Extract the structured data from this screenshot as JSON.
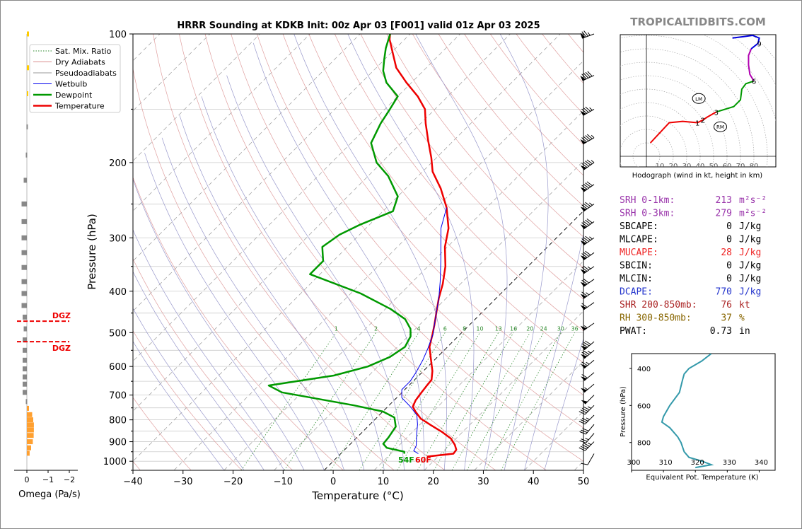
{
  "page": {
    "title": "HRRR Sounding at KDKB Init: 00z Apr 03 [F001] valid 01z Apr 03 2025",
    "watermark": "TROPICALTIDBITS.COM"
  },
  "chart_data": [
    {
      "id": "skewt",
      "type": "line",
      "title": "HRRR Sounding at KDKB Init: 00z Apr 03 [F001] valid 01z Apr 03 2025",
      "xlabel": "Temperature (°C)",
      "ylabel": "Pressure (hPa)",
      "xlim": [
        -40,
        50
      ],
      "ylim": [
        1050,
        100
      ],
      "y_scale": "log",
      "x_ticks": [
        "−40",
        "−30",
        "−20",
        "−10",
        "0",
        "10",
        "20",
        "30",
        "40",
        "50"
      ],
      "y_ticks": [
        "100",
        "200",
        "300",
        "400",
        "500",
        "600",
        "700",
        "800",
        "900",
        "1000"
      ],
      "legend": {
        "placement": "top-left",
        "entries": [
          {
            "label": "Sat. Mix. Ratio",
            "color": "#2e8b2e",
            "style": "dotted"
          },
          {
            "label": "Dry Adiabats",
            "color": "#d98c8c",
            "style": "solid"
          },
          {
            "label": "Pseudoadiabats",
            "color": "#999999",
            "style": "solid"
          },
          {
            "label": "Wetbulb",
            "color": "#0000ee",
            "style": "solid"
          },
          {
            "label": "Dewpoint",
            "color": "#009900",
            "style": "solid"
          },
          {
            "label": "Temperature",
            "color": "#ee0000",
            "style": "solid"
          }
        ]
      },
      "mixing_ratio_labels": [
        "1",
        "2",
        "4",
        "6",
        "8",
        "10",
        "13",
        "16",
        "20",
        "24",
        "30",
        "36"
      ],
      "surface_labels": {
        "dewpoint": "54F",
        "temperature": "60F"
      },
      "series": [
        {
          "name": "Temperature",
          "color": "#ee0000",
          "points": [
            [
              17.8,
              975
            ],
            [
              22.5,
              960
            ],
            [
              22.3,
              940
            ],
            [
              21,
              915
            ],
            [
              19,
              885
            ],
            [
              16,
              855
            ],
            [
              12.5,
              825
            ],
            [
              9,
              795
            ],
            [
              6.5,
              765
            ],
            [
              5,
              745
            ],
            [
              4.3,
              720
            ],
            [
              3.9,
              690
            ],
            [
              3.6,
              665
            ],
            [
              3.4,
              645
            ],
            [
              1.8,
              615
            ],
            [
              -1,
              575
            ],
            [
              -3.6,
              540
            ],
            [
              -5.5,
              505
            ],
            [
              -7,
              480
            ],
            [
              -9,
              450
            ],
            [
              -11.5,
              415
            ],
            [
              -13.5,
              385
            ],
            [
              -16.5,
              350
            ],
            [
              -20.5,
              315
            ],
            [
              -23.5,
              285
            ],
            [
              -28,
              255
            ],
            [
              -33,
              230
            ],
            [
              -38,
              210
            ],
            [
              -41,
              195
            ],
            [
              -45,
              178
            ],
            [
              -49,
              162
            ],
            [
              -52,
              150
            ],
            [
              -56,
              140
            ],
            [
              -61,
              130
            ],
            [
              -66,
              120
            ],
            [
              -70,
              110
            ],
            [
              -73,
              103
            ],
            [
              -74,
              100
            ]
          ]
        },
        {
          "name": "Dewpoint",
          "color": "#009900",
          "points": [
            [
              12.7,
              960
            ],
            [
              12.3,
              950
            ],
            [
              8,
              930
            ],
            [
              6.5,
              910
            ],
            [
              6.3,
              880
            ],
            [
              5.6,
              830
            ],
            [
              3.5,
              790
            ],
            [
              0,
              765
            ],
            [
              -7,
              740
            ],
            [
              -24,
              690
            ],
            [
              -28,
              665
            ],
            [
              -17,
              630
            ],
            [
              -12,
              600
            ],
            [
              -9.5,
              570
            ],
            [
              -8.5,
              540
            ],
            [
              -9.5,
              510
            ],
            [
              -11,
              490
            ],
            [
              -14,
              465
            ],
            [
              -19,
              440
            ],
            [
              -28,
              405
            ],
            [
              -42,
              365
            ],
            [
              -42,
              340
            ],
            [
              -45,
              315
            ],
            [
              -44,
              295
            ],
            [
              -42,
              280
            ],
            [
              -38,
              260
            ],
            [
              -40,
              240
            ],
            [
              -46,
              215
            ],
            [
              -51,
              200
            ],
            [
              -56,
              180
            ],
            [
              -58,
              162
            ],
            [
              -59,
              150
            ],
            [
              -60,
              140
            ],
            [
              -65,
              130
            ],
            [
              -68,
              122
            ],
            [
              -70,
              115
            ],
            [
              -72,
              108
            ],
            [
              -74,
              100
            ]
          ]
        },
        {
          "name": "Wetbulb",
          "color": "#0000ee",
          "points": [
            [
              15.5,
              960
            ],
            [
              14,
              945
            ],
            [
              13.5,
              920
            ],
            [
              11.5,
              870
            ],
            [
              9.5,
              820
            ],
            [
              7.5,
              780
            ],
            [
              4.5,
              745
            ],
            [
              1,
              710
            ],
            [
              -0.6,
              680
            ],
            [
              -0.6,
              650
            ],
            [
              -1.2,
              620
            ],
            [
              -2.3,
              580
            ],
            [
              -3.6,
              545
            ],
            [
              -5.4,
              505
            ],
            [
              -7,
              480
            ],
            [
              -9,
              450
            ],
            [
              -11.5,
              415
            ],
            [
              -14.5,
              380
            ],
            [
              -18.5,
              340
            ],
            [
              -22.5,
              305
            ],
            [
              -25,
              285
            ],
            [
              -28,
              255
            ]
          ]
        }
      ]
    },
    {
      "id": "omega",
      "type": "bar",
      "xlabel": "Omega (Pa/s)",
      "xlim": [
        0.3,
        -2
      ],
      "x_ticks": [
        "0",
        "−1",
        "−2"
      ],
      "dgz_label": "DGZ",
      "dgz_bounds_hpa": [
        470,
        525
      ],
      "bars": [
        {
          "p": 100,
          "v": -0.1
        },
        {
          "p": 120,
          "v": -0.1
        },
        {
          "p": 138,
          "v": -0.05
        },
        {
          "p": 165,
          "v": 0.02
        },
        {
          "p": 192,
          "v": 0.05
        },
        {
          "p": 220,
          "v": 0.15
        },
        {
          "p": 250,
          "v": 0.25
        },
        {
          "p": 275,
          "v": 0.25
        },
        {
          "p": 300,
          "v": 0.25
        },
        {
          "p": 325,
          "v": 0.25
        },
        {
          "p": 352,
          "v": 0.25
        },
        {
          "p": 380,
          "v": 0.25
        },
        {
          "p": 405,
          "v": 0.25
        },
        {
          "p": 432,
          "v": 0.25
        },
        {
          "p": 460,
          "v": 0.2
        },
        {
          "p": 490,
          "v": 0.15
        },
        {
          "p": 520,
          "v": 0.2
        },
        {
          "p": 550,
          "v": 0.2
        },
        {
          "p": 580,
          "v": 0.2
        },
        {
          "p": 608,
          "v": 0.2
        },
        {
          "p": 635,
          "v": 0.2
        },
        {
          "p": 660,
          "v": 0.2
        },
        {
          "p": 690,
          "v": 0.2
        },
        {
          "p": 725,
          "v": 0.05
        },
        {
          "p": 752,
          "v": -0.1
        },
        {
          "p": 778,
          "v": -0.25
        },
        {
          "p": 800,
          "v": -0.3
        },
        {
          "p": 822,
          "v": -0.33
        },
        {
          "p": 845,
          "v": -0.33
        },
        {
          "p": 870,
          "v": -0.32
        },
        {
          "p": 900,
          "v": -0.28
        },
        {
          "p": 930,
          "v": -0.2
        },
        {
          "p": 958,
          "v": -0.13
        }
      ]
    },
    {
      "id": "hodograph",
      "type": "line",
      "xlabel": "Hodograph (wind in kt, height in km)",
      "ring_labels": [
        "10",
        "20",
        "30",
        "40",
        "50",
        "60",
        "70",
        "80"
      ],
      "storm_motion_labels": {
        "left": "LM",
        "right": "RM"
      },
      "storm_motion": {
        "LM": [
          39,
          43
        ],
        "RM": [
          55,
          22
        ]
      },
      "height_labels": [
        {
          "label": "1",
          "u": 38,
          "v": 25
        },
        {
          "label": "2",
          "u": 42,
          "v": 27
        },
        {
          "label": "3",
          "u": 52,
          "v": 33
        },
        {
          "label": "6",
          "u": 80,
          "v": 56
        },
        {
          "label": "9",
          "u": 84,
          "v": 84
        }
      ],
      "segments": [
        {
          "color": "#ee0000",
          "points": [
            [
              3,
              10
            ],
            [
              17,
              25
            ],
            [
              27,
              26
            ],
            [
              38,
              25
            ]
          ]
        },
        {
          "color": "#ee0000",
          "points": [
            [
              38,
              25
            ],
            [
              42,
              27
            ],
            [
              45,
              29
            ],
            [
              52,
              33
            ]
          ]
        },
        {
          "color": "#009900",
          "points": [
            [
              52,
              33
            ],
            [
              65,
              37
            ],
            [
              70,
              42
            ],
            [
              71,
              50
            ],
            [
              74,
              54
            ],
            [
              80,
              56
            ]
          ]
        },
        {
          "color": "#b000b0",
          "points": [
            [
              80,
              56
            ],
            [
              77,
              61
            ],
            [
              76,
              68
            ],
            [
              76,
              75
            ],
            [
              78,
              80
            ]
          ]
        },
        {
          "color": "#0000dd",
          "points": [
            [
              78,
              80
            ],
            [
              83,
              84
            ],
            [
              84,
              88
            ],
            [
              79,
              90
            ],
            [
              72,
              89
            ],
            [
              64,
              88
            ]
          ]
        }
      ]
    },
    {
      "id": "theta_e",
      "type": "line",
      "ylabel": "Pressure (hPa)",
      "xlabel": "Equivalent Pot. Temperature (K)",
      "xlim": [
        300,
        345
      ],
      "ylim": [
        950,
        320
      ],
      "x_ticks": [
        "300",
        "310",
        "320",
        "330",
        "340"
      ],
      "y_ticks": [
        "400",
        "600",
        "800"
      ],
      "color": "#3399aa",
      "points": [
        [
          325,
          320
        ],
        [
          322,
          360
        ],
        [
          318,
          400
        ],
        [
          316.5,
          430
        ],
        [
          316,
          460
        ],
        [
          315,
          530
        ],
        [
          312,
          600
        ],
        [
          310,
          660
        ],
        [
          309.5,
          690
        ],
        [
          312,
          720
        ],
        [
          314.5,
          770
        ],
        [
          315.5,
          800
        ],
        [
          316.5,
          850
        ],
        [
          318,
          880
        ],
        [
          322,
          900
        ],
        [
          325,
          920
        ],
        [
          320,
          935
        ]
      ]
    }
  ],
  "stats": [
    {
      "label": "SRH 0-1km:",
      "value": "213",
      "unit_html": "m²s⁻²",
      "color": "#9933aa"
    },
    {
      "label": "SRH 0-3km:",
      "value": "279",
      "unit_html": "m²s⁻²",
      "color": "#9933aa"
    },
    {
      "label": "SBCAPE:",
      "value": "0",
      "unit_html": "J/kg",
      "color": "#000000"
    },
    {
      "label": "MLCAPE:",
      "value": "0",
      "unit_html": "J/kg",
      "color": "#000000"
    },
    {
      "label": "MUCAPE:",
      "value": "28",
      "unit_html": "J/kg",
      "color": "#ee2222"
    },
    {
      "label": "SBCIN:",
      "value": "0",
      "unit_html": "J/kg",
      "color": "#000000"
    },
    {
      "label": "MLCIN:",
      "value": "0",
      "unit_html": "J/kg",
      "color": "#000000"
    },
    {
      "label": "DCAPE:",
      "value": "770",
      "unit_html": "J/kg",
      "color": "#2233cc"
    },
    {
      "label": "SHR 200-850mb:",
      "value": "76",
      "unit_html": "kt",
      "color": "#aa2222"
    },
    {
      "label": "RH 300-850mb:",
      "value": "37",
      "unit_html": "%",
      "color": "#886600"
    },
    {
      "label": "PWAT:",
      "value": "0.73",
      "unit_html": "in",
      "color": "#000000"
    }
  ],
  "wind_barbs": [
    {
      "p": 100,
      "dir": 250,
      "kt": 75
    },
    {
      "p": 125,
      "dir": 245,
      "kt": 90
    },
    {
      "p": 150,
      "dir": 240,
      "kt": 85
    },
    {
      "p": 175,
      "dir": 240,
      "kt": 95
    },
    {
      "p": 200,
      "dir": 235,
      "kt": 95
    },
    {
      "p": 225,
      "dir": 235,
      "kt": 90
    },
    {
      "p": 250,
      "dir": 235,
      "kt": 85
    },
    {
      "p": 275,
      "dir": 235,
      "kt": 90
    },
    {
      "p": 300,
      "dir": 235,
      "kt": 85
    },
    {
      "p": 325,
      "dir": 235,
      "kt": 80
    },
    {
      "p": 350,
      "dir": 235,
      "kt": 75
    },
    {
      "p": 375,
      "dir": 235,
      "kt": 70
    },
    {
      "p": 400,
      "dir": 235,
      "kt": 65
    },
    {
      "p": 425,
      "dir": 235,
      "kt": 60
    },
    {
      "p": 475,
      "dir": 235,
      "kt": 55
    },
    {
      "p": 525,
      "dir": 230,
      "kt": 80
    },
    {
      "p": 550,
      "dir": 230,
      "kt": 75
    },
    {
      "p": 580,
      "dir": 230,
      "kt": 65
    },
    {
      "p": 620,
      "dir": 230,
      "kt": 60
    },
    {
      "p": 660,
      "dir": 230,
      "kt": 55
    },
    {
      "p": 700,
      "dir": 225,
      "kt": 50
    },
    {
      "p": 740,
      "dir": 225,
      "kt": 45
    },
    {
      "p": 780,
      "dir": 225,
      "kt": 35
    },
    {
      "p": 820,
      "dir": 220,
      "kt": 30
    },
    {
      "p": 860,
      "dir": 220,
      "kt": 25
    },
    {
      "p": 900,
      "dir": 225,
      "kt": 45
    },
    {
      "p": 960,
      "dir": 210,
      "kt": 10
    }
  ]
}
